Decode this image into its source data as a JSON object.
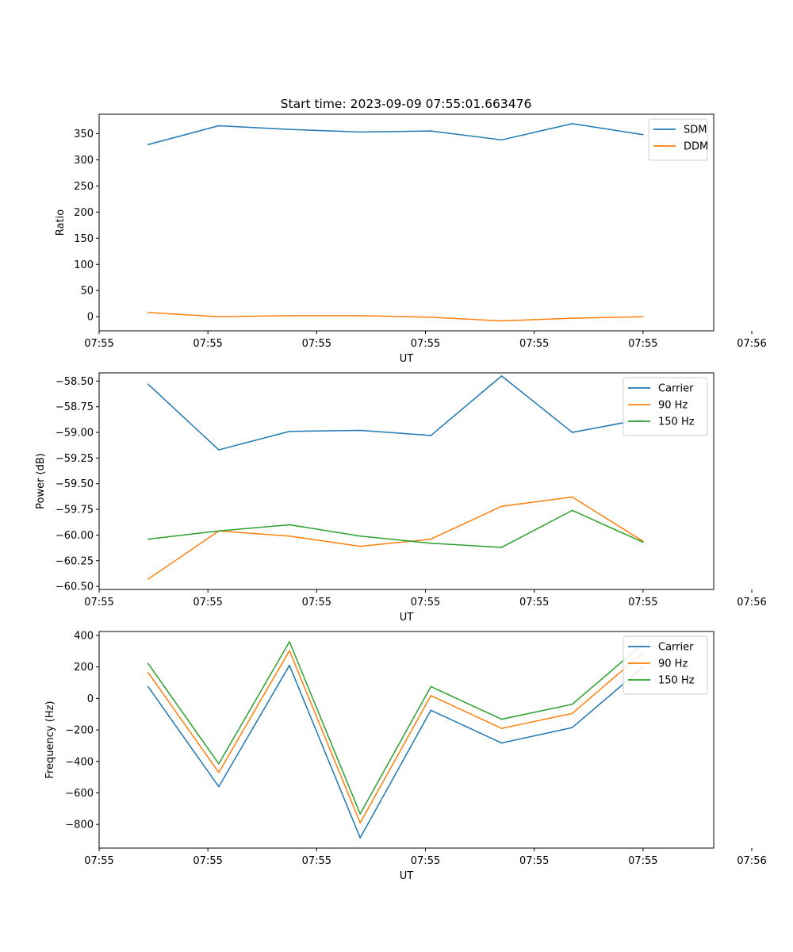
{
  "title": "Start time: 2023-09-09 07:55:01.663476",
  "colors": {
    "blue": "#1f77b4",
    "orange": "#ff7f0e",
    "green": "#2ca02c"
  },
  "chart_data": [
    {
      "type": "line",
      "title": "Start time: 2023-09-09 07:55:01.663476",
      "xlabel": "UT",
      "ylabel": "Ratio",
      "legend_position": "top-right",
      "xlim": [
        -0.45,
        5.2
      ],
      "ylim": [
        -27,
        387
      ],
      "x": [
        0,
        0.65,
        1.3,
        1.95,
        2.6,
        3.25,
        3.9,
        4.55
      ],
      "x_ticks": [
        -0.45,
        0.55,
        1.55,
        2.55,
        3.55,
        4.55,
        5.55
      ],
      "x_tick_labels": [
        "07:55",
        "07:55",
        "07:55",
        "07:55",
        "07:55",
        "07:55",
        "07:56"
      ],
      "y_ticks": [
        0,
        50,
        100,
        150,
        200,
        250,
        300,
        350
      ],
      "y_tick_labels": [
        "0",
        "50",
        "100",
        "150",
        "200",
        "250",
        "300",
        "350"
      ],
      "series": [
        {
          "name": "SDM",
          "color": "#1f77b4",
          "values": [
            329,
            365,
            358,
            353,
            355,
            338,
            369,
            348
          ]
        },
        {
          "name": "DDM",
          "color": "#ff7f0e",
          "values": [
            8,
            0,
            2,
            2,
            -1,
            -8,
            -3,
            0
          ]
        }
      ]
    },
    {
      "type": "line",
      "title": "",
      "xlabel": "UT",
      "ylabel": "Power (dB)",
      "legend_position": "top-right",
      "xlim": [
        -0.45,
        5.2
      ],
      "ylim": [
        -60.53,
        -58.42
      ],
      "x": [
        0,
        0.65,
        1.3,
        1.95,
        2.6,
        3.25,
        3.9,
        4.55
      ],
      "x_ticks": [
        -0.45,
        0.55,
        1.55,
        2.55,
        3.55,
        4.55,
        5.55
      ],
      "x_tick_labels": [
        "07:55",
        "07:55",
        "07:55",
        "07:55",
        "07:55",
        "07:55",
        "07:56"
      ],
      "y_ticks": [
        -60.5,
        -60.25,
        -60.0,
        -59.75,
        -59.5,
        -59.25,
        -59.0,
        -58.75,
        -58.5
      ],
      "y_tick_labels": [
        "−60.50",
        "−60.25",
        "−60.00",
        "−59.75",
        "−59.50",
        "−59.25",
        "−59.00",
        "−58.75",
        "−58.50"
      ],
      "series": [
        {
          "name": "Carrier",
          "color": "#1f77b4",
          "values": [
            -58.53,
            -59.17,
            -58.99,
            -58.98,
            -59.03,
            -58.45,
            -59.0,
            -58.87
          ]
        },
        {
          "name": "90 Hz",
          "color": "#ff7f0e",
          "values": [
            -60.43,
            -59.96,
            -60.01,
            -60.11,
            -60.04,
            -59.72,
            -59.63,
            -60.06
          ]
        },
        {
          "name": "150 Hz",
          "color": "#2ca02c",
          "values": [
            -60.04,
            -59.96,
            -59.9,
            -60.01,
            -60.08,
            -60.12,
            -59.76,
            -60.07
          ]
        }
      ]
    },
    {
      "type": "line",
      "title": "",
      "xlabel": "UT",
      "ylabel": "Frequency (Hz)",
      "legend_position": "top-right",
      "xlim": [
        -0.45,
        5.2
      ],
      "ylim": [
        -950,
        425
      ],
      "x": [
        0,
        0.65,
        1.3,
        1.95,
        2.6,
        3.25,
        3.9,
        4.55
      ],
      "x_ticks": [
        -0.45,
        0.55,
        1.55,
        2.55,
        3.55,
        4.55,
        5.55
      ],
      "x_tick_labels": [
        "07:55",
        "07:55",
        "07:55",
        "07:55",
        "07:55",
        "07:55",
        "07:56"
      ],
      "y_ticks": [
        -800,
        -600,
        -400,
        -200,
        0,
        200,
        400
      ],
      "y_tick_labels": [
        "−800",
        "−600",
        "−400",
        "−200",
        "0",
        "200",
        "400"
      ],
      "series": [
        {
          "name": "Carrier",
          "color": "#1f77b4",
          "values": [
            75,
            -560,
            210,
            -885,
            -75,
            -283,
            -185,
            198
          ]
        },
        {
          "name": "90 Hz",
          "color": "#ff7f0e",
          "values": [
            165,
            -470,
            303,
            -790,
            18,
            -190,
            -95,
            290
          ]
        },
        {
          "name": "150 Hz",
          "color": "#2ca02c",
          "values": [
            222,
            -415,
            360,
            -733,
            75,
            -132,
            -37,
            347
          ]
        }
      ]
    }
  ]
}
